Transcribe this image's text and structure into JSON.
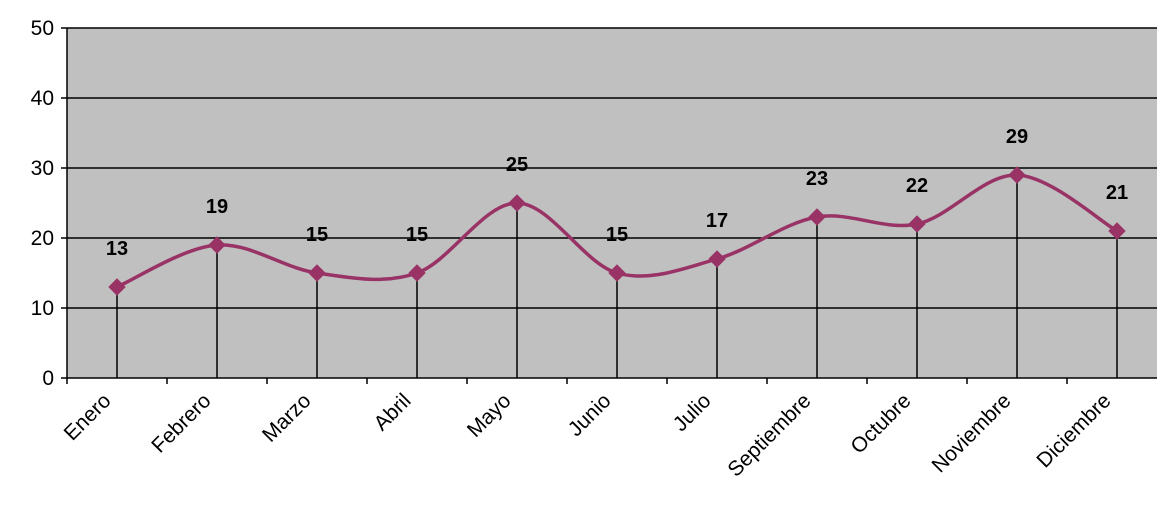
{
  "chart_data": {
    "type": "line",
    "categories": [
      "Enero",
      "Febrero",
      "Marzo",
      "Abril",
      "Mayo",
      "Junio",
      "Julio",
      "Septiembre",
      "Octubre",
      "Noviembre",
      "Diciembre"
    ],
    "series": [
      {
        "values": [
          13,
          19,
          15,
          15,
          25,
          15,
          17,
          23,
          22,
          29,
          21
        ],
        "color": "#993366",
        "marker": "diamond",
        "smooth": true
      }
    ],
    "ylim": [
      0,
      50
    ],
    "yticks": [
      0,
      10,
      20,
      30,
      40,
      50
    ],
    "grid": "horizontal",
    "drop_lines": true,
    "data_labels": true,
    "legend": "none",
    "title": "",
    "xlabel": "",
    "ylabel": "",
    "plot_background": "#c0c0c0"
  }
}
